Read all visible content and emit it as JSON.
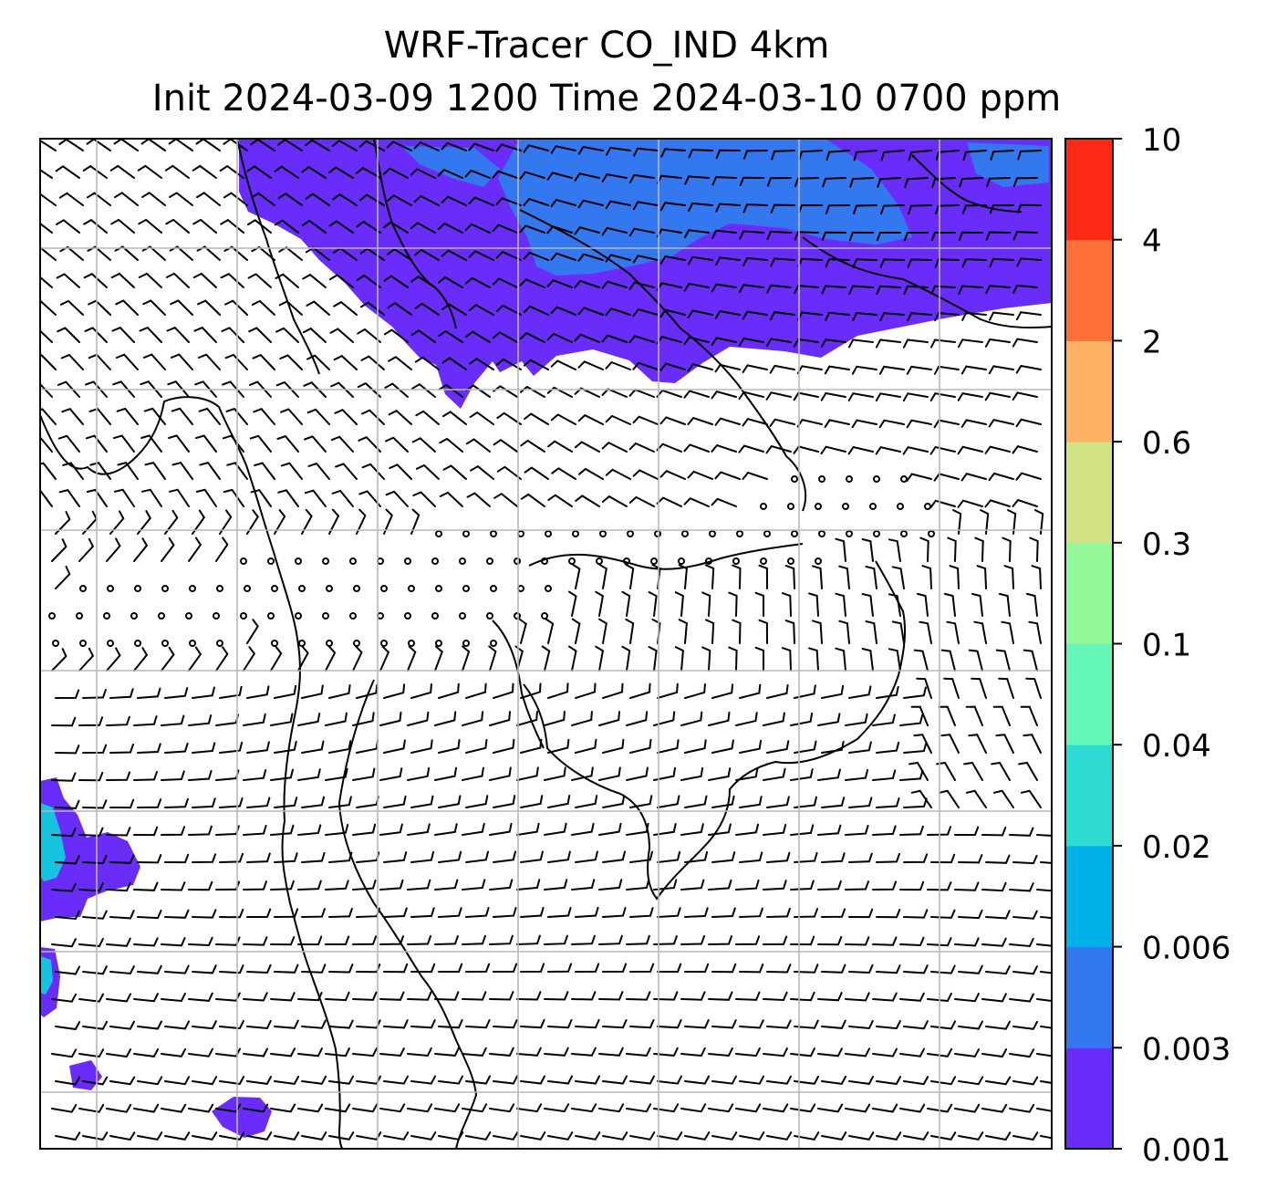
{
  "title": {
    "line1": "WRF-Tracer CO_IND 4km",
    "line2": "Init 2024-03-09 1200 Time 2024-03-10 0700 ppm"
  },
  "colorbar": {
    "levels": [
      "0.001",
      "0.003",
      "0.006",
      "0.02",
      "0.04",
      "0.1",
      "0.3",
      "0.6",
      "2",
      "4",
      "10"
    ],
    "colors": [
      "#6a2cf9",
      "#3478f0",
      "#00b1e8",
      "#2fdcd2",
      "#64f5b9",
      "#94f89a",
      "#d1e385",
      "#fdb162",
      "#ff7038",
      "#ff2a16"
    ]
  },
  "map": {
    "background": "#ffffff",
    "gridline_color": "#b8b8b8",
    "plume_colors": {
      "low": "#6a2cf9",
      "mid": "#3478f0",
      "cyan": "#18c3e0"
    },
    "calm_symbol": "circle",
    "wind_barb_color": "#000000"
  }
}
